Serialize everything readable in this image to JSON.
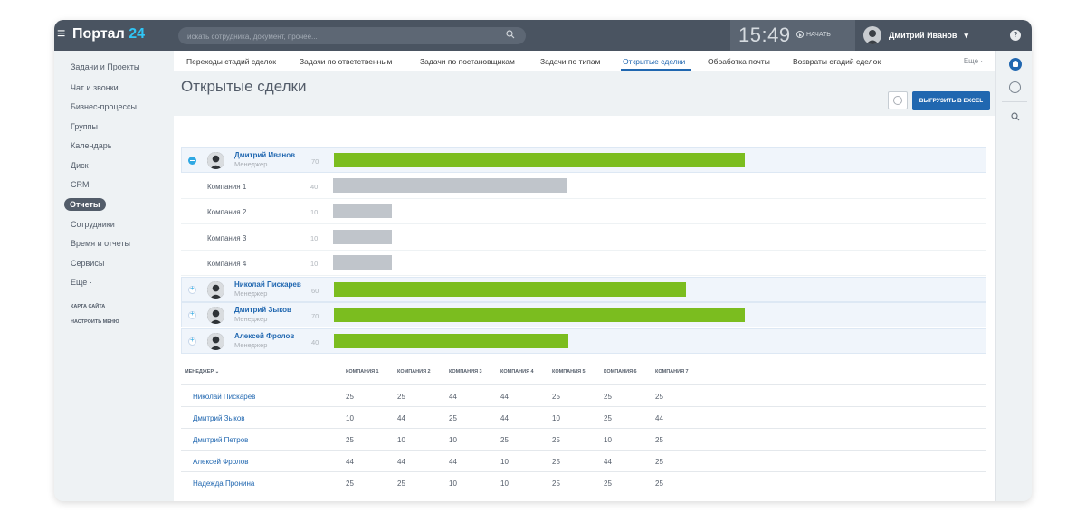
{
  "header": {
    "logo_text": "Портал",
    "logo_num": "24",
    "search_placeholder": "искать сотрудника, документ, прочее...",
    "clock": "15:49",
    "start_label": "НАЧАТЬ",
    "user_name": "Дмитрий Иванов"
  },
  "sidebar": {
    "items": [
      {
        "label": "Задачи и Проекты"
      },
      {
        "label": "Чат и звонки"
      },
      {
        "label": "Бизнес-процессы"
      },
      {
        "label": "Группы"
      },
      {
        "label": "Календарь"
      },
      {
        "label": "Диск"
      },
      {
        "label": "CRM"
      },
      {
        "label": "Отчеты"
      },
      {
        "label": "Сотрудники"
      },
      {
        "label": "Время и отчеты"
      },
      {
        "label": "Сервисы"
      },
      {
        "label": "Еще ·"
      }
    ],
    "sitemap": "КАРТА САЙТА",
    "configure": "НАСТРОИТЬ МЕНЮ"
  },
  "tabs": {
    "items": [
      {
        "label": "Переходы стадий сделок"
      },
      {
        "label": "Задачи по ответственным"
      },
      {
        "label": "Задачи по постановщикам"
      },
      {
        "label": "Задачи по типам"
      },
      {
        "label": "Открытые сделки"
      },
      {
        "label": "Обработка почты"
      },
      {
        "label": "Возвраты стадий сделок"
      }
    ],
    "more": "Еще ·"
  },
  "page": {
    "title": "Открытые сделки",
    "excel_button": "ВЫГРУЗИТЬ В EXCEL"
  },
  "chart_data": {
    "type": "bar",
    "max": 100,
    "rows": [
      {
        "kind": "manager",
        "name": "Дмитрий Иванов",
        "role": "Менеджер",
        "value": 70,
        "expanded": true
      },
      {
        "kind": "company",
        "name": "Компания 1",
        "value": 40
      },
      {
        "kind": "company",
        "name": "Компания 2",
        "value": 10
      },
      {
        "kind": "company",
        "name": "Компания 3",
        "value": 10
      },
      {
        "kind": "company",
        "name": "Компания 4",
        "value": 10
      },
      {
        "kind": "manager",
        "name": "Николай Пискарев",
        "role": "Менеджер",
        "value": 60,
        "expanded": false
      },
      {
        "kind": "manager",
        "name": "Дмитрий Зыков",
        "role": "Менеджер",
        "value": 70,
        "expanded": false
      },
      {
        "kind": "manager",
        "name": "Алексей Фролов",
        "role": "Менеджер",
        "value": 40,
        "expanded": false
      }
    ],
    "colors": {
      "manager": "#7bbd1f",
      "company": "#c0c5cb"
    }
  },
  "table": {
    "manager_header": "МЕНЕДЖЕР",
    "columns": [
      "КОМПАНИЯ 1",
      "КОМПАНИЯ 2",
      "КОМПАНИЯ 3",
      "КОМПАНИЯ 4",
      "КОМПАНИЯ 5",
      "КОМПАНИЯ 6",
      "КОМПАНИЯ 7"
    ],
    "rows": [
      {
        "name": "Николай Пискарев",
        "values": [
          "25",
          "25",
          "44",
          "44",
          "25",
          "25",
          "25"
        ]
      },
      {
        "name": "Дмитрий Зыков",
        "values": [
          "10",
          "44",
          "25",
          "44",
          "10",
          "25",
          "44"
        ]
      },
      {
        "name": "Дмитрий Петров",
        "values": [
          "25",
          "10",
          "10",
          "25",
          "25",
          "10",
          "25"
        ]
      },
      {
        "name": "Алексей Фролов",
        "values": [
          "44",
          "44",
          "44",
          "10",
          "25",
          "44",
          "25"
        ]
      },
      {
        "name": "Надежда Пронина",
        "values": [
          "25",
          "25",
          "10",
          "10",
          "25",
          "25",
          "25"
        ]
      }
    ]
  }
}
